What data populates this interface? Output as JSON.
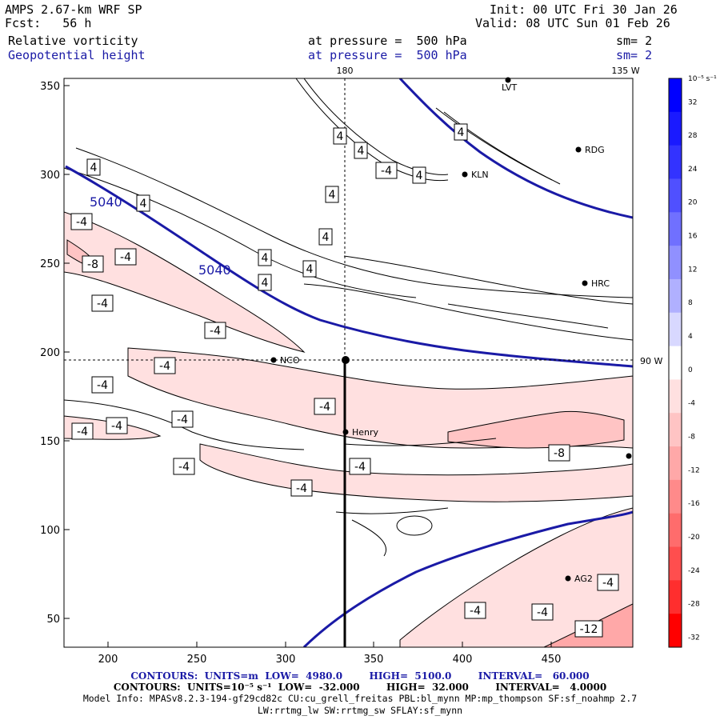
{
  "header": {
    "model": "AMPS 2.67-km WRF SP",
    "forecast": "Fcst:   56 h",
    "init": "Init: 00 UTC Fri 30 Jan 26",
    "valid": "Valid: 08 UTC Sun 01 Feb 26",
    "field1_name": "Relative vorticity",
    "field1_level": "at pressure =  500 hPa",
    "field1_smooth": "sm= 2",
    "field2_name": "Geopotential height",
    "field2_level": "at pressure =  500 hPa",
    "field2_smooth": "sm= 2"
  },
  "map": {
    "lon_label_top": "180",
    "lon_label_tr": "135 W",
    "lon_label_right": "90 W",
    "x_ticks": [
      "200",
      "250",
      "300",
      "350",
      "400",
      "450"
    ],
    "y_ticks": [
      "350",
      "300",
      "250",
      "200",
      "150",
      "100",
      "50"
    ],
    "height_labels": [
      "5040",
      "5040"
    ],
    "vort_labels": [
      "4",
      "4",
      "4",
      "-4",
      "4",
      "4",
      "4",
      "4",
      "4",
      "4",
      "4",
      "4",
      "-4",
      "-8",
      "-4",
      "-4",
      "-4",
      "-4",
      "-4",
      "-4",
      "-4",
      "-4",
      "-4",
      "-4",
      "-4",
      "-4",
      "-8",
      "-4",
      "-4",
      "-4",
      "-12"
    ],
    "stations": [
      "LVT",
      "RDG",
      "KLN",
      "HRC",
      "NCO",
      "Henry",
      "AG2"
    ]
  },
  "colorbar": {
    "unit": "10⁻⁵ s⁻¹",
    "labels": [
      "32",
      "28",
      "24",
      "20",
      "16",
      "12",
      "8",
      "4",
      "0",
      "-4",
      "-8",
      "-12",
      "-16",
      "-20",
      "-24",
      "-28",
      "-32"
    ],
    "colors": [
      "#0000ff",
      "#1a1aff",
      "#3333ff",
      "#5050ff",
      "#7070ff",
      "#9090ff",
      "#b0b0ff",
      "#d8d8ff",
      "#ffffff",
      "#ffe0e0",
      "#ffc4c4",
      "#ffa8a8",
      "#ff8a8a",
      "#ff6c6c",
      "#ff4e4e",
      "#ff2e2e",
      "#ff0000"
    ]
  },
  "footer": {
    "contours1": "CONTOURS:  UNITS=m  LOW=  4980.0        HIGH=  5100.0        INTERVAL=   60.000",
    "contours2": "CONTOURS:  UNITS=10⁻⁵ s⁻¹  LOW=  -32.000        HIGH=  32.000        INTERVAL=   4.0000",
    "model_info": "Model Info: MPASv8.2.3-194-gf29cd82c CU:cu_grell_freitas PBL:bl_mynn MP:mp_thompson SF:sf_noahmp 2.7",
    "model_info2": "LW:rrtmg_lw SW:rrtmg_sw SFLAY:sf_mynn"
  }
}
